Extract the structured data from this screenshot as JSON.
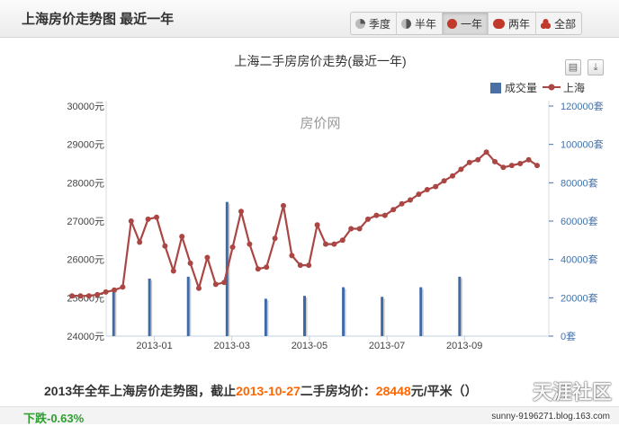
{
  "header": {
    "title": "上海房价走势图  最近一年",
    "tabs": [
      {
        "label": "季度",
        "icon": "pie-quarter-icon",
        "color": "#888888"
      },
      {
        "label": "半年",
        "icon": "pie-half-icon",
        "color": "#888888"
      },
      {
        "label": "一年",
        "icon": "circle-full-icon",
        "color": "#c0392b",
        "active": true
      },
      {
        "label": "两年",
        "icon": "circle-double-icon",
        "color": "#c0392b"
      },
      {
        "label": "全部",
        "icon": "circles-group-icon",
        "color": "#c0392b"
      }
    ]
  },
  "toolbar": {
    "print_icon": "print-icon",
    "download_icon": "download-icon"
  },
  "chart_data": {
    "type": "bar+line",
    "title": "上海二手房房价走势(最近一年)",
    "watermark": "房价网",
    "legend": {
      "placement": "top-right",
      "entries": [
        {
          "name": "成交量",
          "color": "#4a6fa5",
          "kind": "bar"
        },
        {
          "name": "上海",
          "color": "#aa4643",
          "kind": "line"
        }
      ]
    },
    "y_left": {
      "min": 24000,
      "max": 30000,
      "ticks": [
        "24000元",
        "25000元",
        "26000元",
        "27000元",
        "28000元",
        "29000元",
        "30000元"
      ]
    },
    "y_right": {
      "min": 0,
      "max": 120000,
      "ticks": [
        "0套",
        "20000套",
        "40000套",
        "60000套",
        "80000套",
        "100000套",
        "120000套"
      ]
    },
    "x_ticks": [
      {
        "label": "2013-01",
        "t": 8.5
      },
      {
        "label": "2013-03",
        "t": 16.5
      },
      {
        "label": "2013-05",
        "t": 24.5
      },
      {
        "label": "2013-07",
        "t": 32.5
      },
      {
        "label": "2013-09",
        "t": 40.5
      }
    ],
    "x_range": [
      0,
      48
    ],
    "price_series": {
      "name": "上海",
      "values": [
        25050,
        25050,
        25050,
        25080,
        25150,
        25200,
        25280,
        27000,
        26450,
        27050,
        27100,
        26350,
        25700,
        26600,
        25900,
        25250,
        26050,
        25350,
        25400,
        26320,
        27250,
        26400,
        25750,
        25800,
        26550,
        27400,
        26100,
        25850,
        25850,
        26900,
        26400,
        26400,
        26500,
        26800,
        26800,
        27050,
        27150,
        27150,
        27300,
        27450,
        27550,
        27700,
        27820,
        27900,
        28050,
        28180,
        28350,
        28530,
        28600,
        28800,
        28550,
        28400,
        28450,
        28500,
        28600,
        28450
      ],
      "t_start": 0,
      "t_end": 48
    },
    "volume_series": {
      "name": "成交量",
      "bars": [
        {
          "t": 4.3,
          "v": 25000
        },
        {
          "t": 8.0,
          "v": 30000
        },
        {
          "t": 12.0,
          "v": 31000
        },
        {
          "t": 16.0,
          "v": 70000
        },
        {
          "t": 20.0,
          "v": 19500
        },
        {
          "t": 24.0,
          "v": 21000
        },
        {
          "t": 28.0,
          "v": 25500
        },
        {
          "t": 32.0,
          "v": 20500
        },
        {
          "t": 36.0,
          "v": 25500
        },
        {
          "t": 40.0,
          "v": 31000
        }
      ]
    }
  },
  "footer": {
    "prefix": "2013年全年上海房价走势图，截止",
    "date": "2013-10-27",
    "mid": "二手房均价：",
    "price": "28448",
    "unit": "元/平米（",
    "tail": "）"
  },
  "status": {
    "change": "下跌-0.63%"
  },
  "watermark": {
    "logo": "天涯社区",
    "url": "sunny-9196271.blog.163.com"
  }
}
